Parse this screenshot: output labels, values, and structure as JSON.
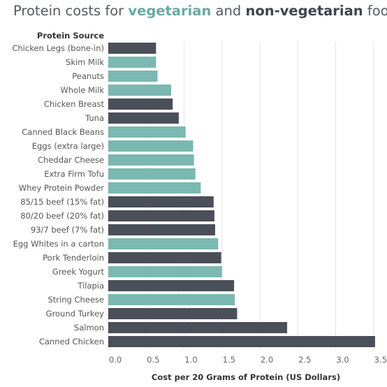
{
  "title": {
    "prefix": "Protein costs for ",
    "veg": "vegetarian",
    "middle": " and ",
    "nonveg": "non-vegetarian",
    "suffix": " food"
  },
  "colors": {
    "vegetarian": "#7ab8b1",
    "non_vegetarian": "#4a4f59",
    "gridline": "#e6e6e6",
    "text": "#555555"
  },
  "chart_data": {
    "type": "bar",
    "orientation": "horizontal",
    "row_header": "Protein Source",
    "xlabel": "Cost per 20 Grams of Protein (US Dollars)",
    "xlim": [
      0,
      3.6
    ],
    "xticks": [
      "0.0",
      "0.5",
      "1.0",
      "1.5",
      "2.0",
      "2.5",
      "3.0",
      "3.5"
    ],
    "grid": true,
    "categories": [
      "Chicken Legs (bone-in)",
      "Skim Milk",
      "Peanuts",
      "Whole Milk",
      "Chicken Breast",
      "Tuna",
      "Canned Black Beans",
      "Eggs (extra large)",
      "Cheddar Cheese",
      "Extra Firm Tofu",
      "Whey Protein Powder",
      "85/15 beef (15% fat)",
      "80/20 beef (20% fat)",
      "93/7 beef (7% fat)",
      "Egg Whites in a carton",
      "Pork Tenderloin",
      "Greek Yogurt",
      "Tilapia",
      "String Cheese",
      "Ground Turkey",
      "Salmon",
      "Canned Chicken"
    ],
    "values": [
      0.63,
      0.63,
      0.65,
      0.83,
      0.85,
      0.93,
      1.02,
      1.12,
      1.13,
      1.15,
      1.22,
      1.39,
      1.4,
      1.41,
      1.45,
      1.49,
      1.5,
      1.66,
      1.67,
      1.7,
      2.36,
      3.52
    ],
    "groups": [
      "non-vegetarian",
      "vegetarian",
      "vegetarian",
      "vegetarian",
      "non-vegetarian",
      "non-vegetarian",
      "vegetarian",
      "vegetarian",
      "vegetarian",
      "vegetarian",
      "vegetarian",
      "non-vegetarian",
      "non-vegetarian",
      "non-vegetarian",
      "vegetarian",
      "non-vegetarian",
      "vegetarian",
      "non-vegetarian",
      "vegetarian",
      "non-vegetarian",
      "non-vegetarian",
      "non-vegetarian"
    ]
  }
}
